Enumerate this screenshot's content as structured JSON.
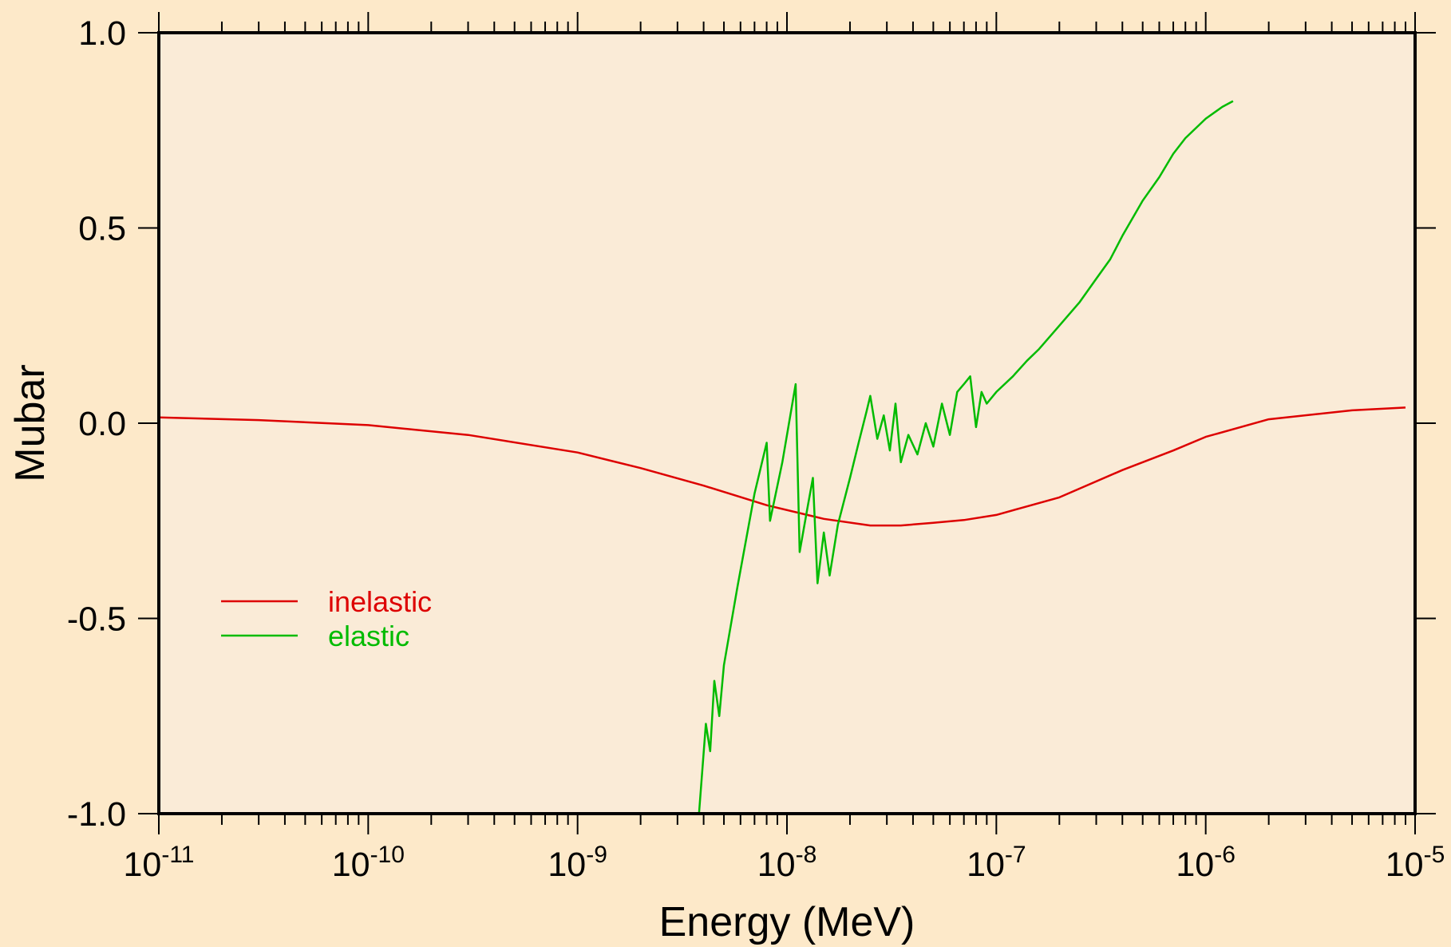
{
  "chart_data": {
    "type": "line",
    "title": "",
    "xlabel": "Energy (MeV)",
    "ylabel": "Mubar",
    "x_scale": "log",
    "xlim": [
      1e-11,
      1e-05
    ],
    "ylim": [
      -1.0,
      1.0
    ],
    "x_tick_labels": [
      {
        "base": "10",
        "exp": "-11"
      },
      {
        "base": "10",
        "exp": "-10"
      },
      {
        "base": "10",
        "exp": "-9"
      },
      {
        "base": "10",
        "exp": "-8"
      },
      {
        "base": "10",
        "exp": "-7"
      },
      {
        "base": "10",
        "exp": "-6"
      },
      {
        "base": "10",
        "exp": "-5"
      }
    ],
    "y_tick_labels": [
      "1.0",
      "0.5",
      "0.0",
      "-0.5",
      "-1.0"
    ],
    "grid": false,
    "legend_position": "lower-left",
    "colors": {
      "background": "#fde9c9",
      "plot_area": "#faebd7",
      "frame": "#000000"
    },
    "series": [
      {
        "name": "inelastic",
        "color": "#dd0000",
        "x": [
          1e-11,
          3e-11,
          1e-10,
          3e-10,
          1e-09,
          2e-09,
          4e-09,
          8e-09,
          1.5e-08,
          2.5e-08,
          3.5e-08,
          5e-08,
          7e-08,
          1e-07,
          2e-07,
          4e-07,
          7e-07,
          1e-06,
          2e-06,
          5e-06,
          9e-06
        ],
        "y": [
          0.015,
          0.008,
          -0.005,
          -0.03,
          -0.075,
          -0.115,
          -0.16,
          -0.21,
          -0.245,
          -0.262,
          -0.262,
          -0.255,
          -0.248,
          -0.235,
          -0.19,
          -0.12,
          -0.07,
          -0.035,
          0.01,
          0.033,
          0.04
        ]
      },
      {
        "name": "elastic",
        "color": "#00bb00",
        "x": [
          3.8e-09,
          4.1e-09,
          4.3e-09,
          4.5e-09,
          4.75e-09,
          5e-09,
          5.8e-09,
          7e-09,
          8e-09,
          8.3e-09,
          9.5e-09,
          1.1e-08,
          1.15e-08,
          1.25e-08,
          1.33e-08,
          1.4e-08,
          1.5e-08,
          1.6e-08,
          1.75e-08,
          2e-08,
          2.2e-08,
          2.4e-08,
          2.5e-08,
          2.7e-08,
          2.9e-08,
          3.1e-08,
          3.3e-08,
          3.5e-08,
          3.8e-08,
          4.2e-08,
          4.6e-08,
          5e-08,
          5.5e-08,
          6e-08,
          6.5e-08,
          7e-08,
          7.5e-08,
          8e-08,
          8.5e-08,
          9e-08,
          1e-07,
          1.2e-07,
          1.4e-07,
          1.6e-07,
          2e-07,
          2.5e-07,
          3e-07,
          3.5e-07,
          4e-07,
          5e-07,
          6e-07,
          7e-07,
          8e-07,
          1e-06,
          1.2e-06,
          1.35e-06
        ],
        "y": [
          -1.0,
          -0.77,
          -0.84,
          -0.66,
          -0.75,
          -0.62,
          -0.42,
          -0.18,
          -0.05,
          -0.25,
          -0.1,
          0.1,
          -0.33,
          -0.22,
          -0.14,
          -0.41,
          -0.28,
          -0.39,
          -0.26,
          -0.14,
          -0.05,
          0.03,
          0.07,
          -0.04,
          0.02,
          -0.07,
          0.05,
          -0.1,
          -0.03,
          -0.08,
          0.0,
          -0.06,
          0.05,
          -0.03,
          0.08,
          0.1,
          0.12,
          -0.01,
          0.08,
          0.05,
          0.08,
          0.12,
          0.16,
          0.19,
          0.25,
          0.31,
          0.37,
          0.42,
          0.48,
          0.57,
          0.63,
          0.69,
          0.73,
          0.78,
          0.81,
          0.825
        ]
      }
    ]
  }
}
